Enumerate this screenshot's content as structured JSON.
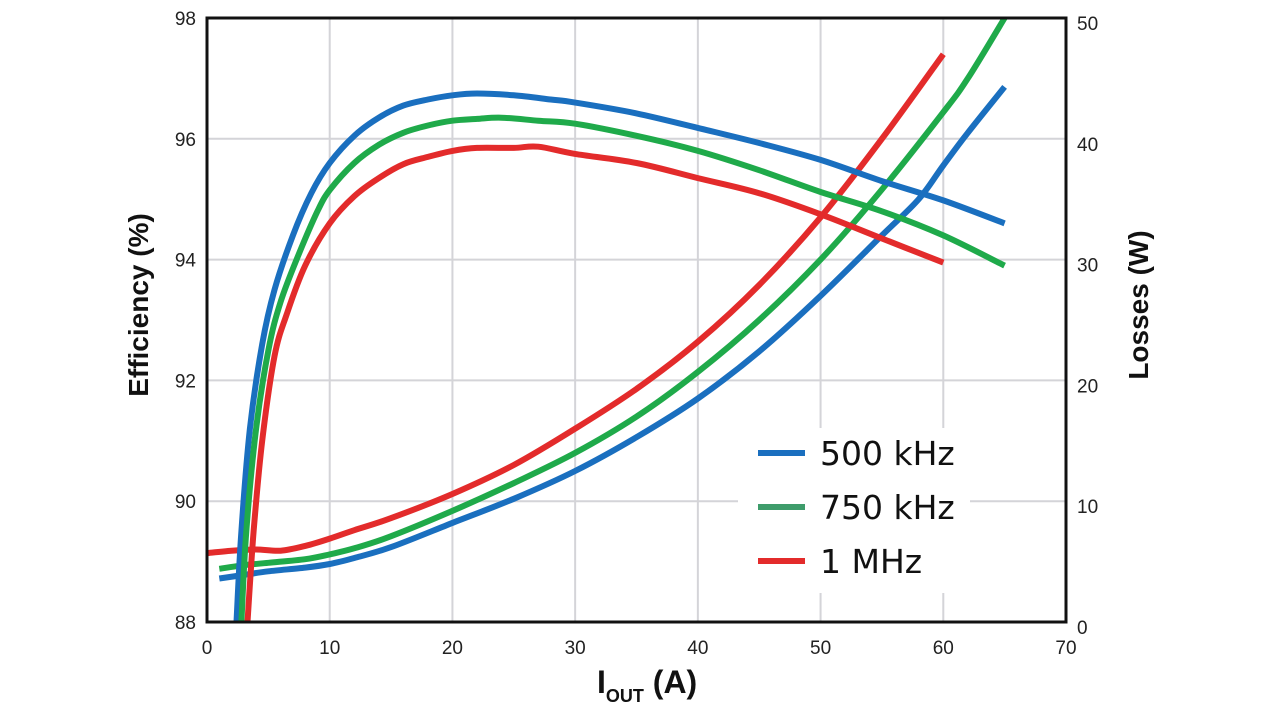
{
  "chart_data": {
    "type": "line",
    "title": "",
    "xlabel": "I",
    "xlabel_subscript": "OUT",
    "xlabel_unit": " (A)",
    "ylabel": "Efficiency (%)",
    "y2label": "Losses (W)",
    "xlim": [
      0,
      70
    ],
    "ylim": [
      88,
      98
    ],
    "y2lim": [
      0,
      50
    ],
    "xticks": [
      0,
      10,
      20,
      30,
      40,
      50,
      60,
      70
    ],
    "yticks": [
      88,
      90,
      92,
      94,
      96,
      98
    ],
    "y2ticks": [
      0,
      10,
      20,
      30,
      40,
      50
    ],
    "grid": true,
    "legend_position": "bottom-right",
    "series": [
      {
        "name": "500 kHz",
        "color": "#1a6fbf",
        "efficiency": {
          "x": [
            2.4,
            2.8,
            3.5,
            4.5,
            5.5,
            7,
            8.5,
            10,
            12,
            14,
            16,
            18,
            20,
            22,
            25,
            28,
            30,
            35,
            40,
            45,
            50,
            55,
            60,
            65
          ],
          "y": [
            88.0,
            89.5,
            91.2,
            92.6,
            93.5,
            94.4,
            95.1,
            95.6,
            96.05,
            96.35,
            96.55,
            96.65,
            96.72,
            96.75,
            96.72,
            96.65,
            96.6,
            96.42,
            96.18,
            95.93,
            95.65,
            95.3,
            94.98,
            94.6
          ]
        },
        "losses": {
          "x": [
            1,
            3,
            5,
            8,
            10,
            12,
            15,
            20,
            25,
            30,
            35,
            40,
            45,
            50,
            55,
            58,
            60,
            62,
            65
          ],
          "y": [
            3.6,
            3.9,
            4.2,
            4.5,
            4.8,
            5.3,
            6.2,
            8.2,
            10.2,
            12.5,
            15.3,
            18.5,
            22.4,
            27.0,
            32.0,
            35.0,
            37.8,
            40.5,
            44.3
          ]
        }
      },
      {
        "name": "750 kHz",
        "color": "#1faa4a",
        "legend_color": "#3e9c6b",
        "efficiency": {
          "x": [
            2.8,
            3.2,
            4,
            5,
            6,
            7.5,
            9,
            10,
            12,
            14,
            16,
            18,
            20,
            22,
            24,
            27,
            30,
            35,
            40,
            45,
            50,
            55,
            60,
            65
          ],
          "y": [
            88.0,
            89.5,
            91.2,
            92.5,
            93.3,
            94.1,
            94.8,
            95.15,
            95.6,
            95.9,
            96.1,
            96.22,
            96.3,
            96.33,
            96.35,
            96.3,
            96.25,
            96.05,
            95.8,
            95.48,
            95.12,
            94.8,
            94.4,
            93.9
          ]
        },
        "losses": {
          "x": [
            1,
            3,
            5,
            8,
            10,
            12,
            15,
            20,
            25,
            30,
            35,
            40,
            45,
            50,
            55,
            60,
            62,
            65
          ],
          "y": [
            4.4,
            4.7,
            4.9,
            5.2,
            5.6,
            6.1,
            7.1,
            9.2,
            11.5,
            14.0,
            17.0,
            20.7,
            25.0,
            30.0,
            35.8,
            42.2,
            45.0,
            50.0
          ]
        }
      },
      {
        "name": "1 MHz",
        "color": "#e32b2b",
        "efficiency": {
          "x": [
            3.3,
            3.8,
            4.5,
            5.5,
            6.5,
            8,
            10,
            12,
            14,
            16,
            18,
            20,
            22,
            25,
            27,
            30,
            35,
            40,
            45,
            50,
            55,
            60
          ],
          "y": [
            88.0,
            89.5,
            91.0,
            92.4,
            93.1,
            93.9,
            94.6,
            95.05,
            95.35,
            95.58,
            95.7,
            95.8,
            95.85,
            95.85,
            95.87,
            95.75,
            95.6,
            95.35,
            95.1,
            94.75,
            94.35,
            93.95
          ]
        },
        "losses": {
          "x": [
            0,
            2,
            4,
            6,
            8,
            10,
            12,
            15,
            20,
            25,
            30,
            35,
            40,
            45,
            50,
            55,
            60
          ],
          "y": [
            5.7,
            5.9,
            6.0,
            5.9,
            6.3,
            6.9,
            7.6,
            8.6,
            10.6,
            13.0,
            16.0,
            19.3,
            23.2,
            27.9,
            33.5,
            40.0,
            47.0
          ]
        }
      }
    ]
  }
}
